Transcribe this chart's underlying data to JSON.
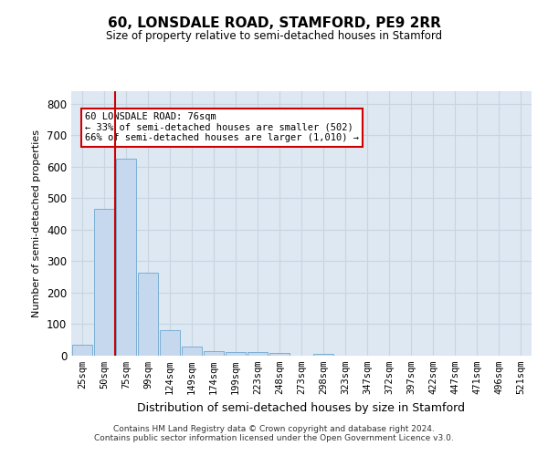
{
  "title": "60, LONSDALE ROAD, STAMFORD, PE9 2RR",
  "subtitle": "Size of property relative to semi-detached houses in Stamford",
  "xlabel": "Distribution of semi-detached houses by size in Stamford",
  "ylabel": "Number of semi-detached properties",
  "footer_line1": "Contains HM Land Registry data © Crown copyright and database right 2024.",
  "footer_line2": "Contains public sector information licensed under the Open Government Licence v3.0.",
  "categories": [
    "25sqm",
    "50sqm",
    "75sqm",
    "99sqm",
    "124sqm",
    "149sqm",
    "174sqm",
    "199sqm",
    "223sqm",
    "248sqm",
    "273sqm",
    "298sqm",
    "323sqm",
    "347sqm",
    "372sqm",
    "397sqm",
    "422sqm",
    "447sqm",
    "471sqm",
    "496sqm",
    "521sqm"
  ],
  "values": [
    35,
    465,
    625,
    265,
    82,
    30,
    15,
    12,
    12,
    8,
    0,
    7,
    0,
    0,
    0,
    0,
    0,
    0,
    0,
    0,
    0
  ],
  "bar_color": "#c5d8ed",
  "bar_edge_color": "#7bafd4",
  "grid_color": "#c8d4e0",
  "background_color": "#dde8f3",
  "vline_color": "#cc0000",
  "annotation_text": "60 LONSDALE ROAD: 76sqm\n← 33% of semi-detached houses are smaller (502)\n66% of semi-detached houses are larger (1,010) →",
  "annotation_box_color": "#ffffff",
  "annotation_box_edge_color": "#cc0000",
  "ylim": [
    0,
    840
  ],
  "yticks": [
    0,
    100,
    200,
    300,
    400,
    500,
    600,
    700,
    800
  ]
}
